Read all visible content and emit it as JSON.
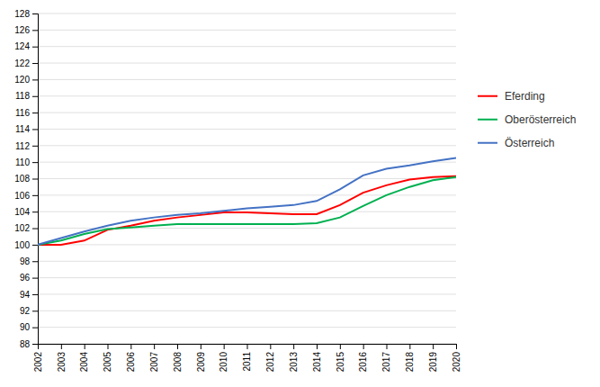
{
  "chart_data": {
    "type": "line",
    "x": [
      2002,
      2003,
      2004,
      2005,
      2006,
      2007,
      2008,
      2009,
      2010,
      2011,
      2012,
      2013,
      2014,
      2015,
      2016,
      2017,
      2018,
      2019,
      2020
    ],
    "xlim": [
      2002,
      2020
    ],
    "xticks": [
      2002,
      2003,
      2004,
      2005,
      2006,
      2007,
      2008,
      2009,
      2010,
      2011,
      2012,
      2013,
      2014,
      2015,
      2016,
      2017,
      2018,
      2019,
      2020
    ],
    "ylim": [
      88,
      128
    ],
    "yticks": [
      88,
      90,
      92,
      94,
      96,
      98,
      100,
      102,
      104,
      106,
      108,
      110,
      112,
      114,
      116,
      118,
      120,
      122,
      124,
      126,
      128
    ],
    "grid": true,
    "legend": "right",
    "series": [
      {
        "name": "Eferding",
        "color": "#ff0000",
        "values": [
          100.0,
          100.0,
          100.5,
          101.8,
          102.3,
          102.9,
          103.3,
          103.6,
          103.9,
          103.9,
          103.8,
          103.7,
          103.7,
          104.8,
          106.3,
          107.2,
          107.9,
          108.2,
          108.3
        ]
      },
      {
        "name": "Oberösterreich",
        "color": "#00b050",
        "values": [
          100.0,
          100.5,
          101.3,
          101.9,
          102.1,
          102.3,
          102.5,
          102.5,
          102.5,
          102.5,
          102.5,
          102.5,
          102.6,
          103.3,
          104.7,
          106.0,
          107.0,
          107.8,
          108.2
        ]
      },
      {
        "name": "Österreich",
        "color": "#4472c4",
        "values": [
          100.0,
          100.8,
          101.6,
          102.3,
          102.9,
          103.3,
          103.6,
          103.8,
          104.1,
          104.4,
          104.6,
          104.8,
          105.3,
          106.7,
          108.4,
          109.2,
          109.6,
          110.1,
          110.5
        ]
      }
    ]
  }
}
